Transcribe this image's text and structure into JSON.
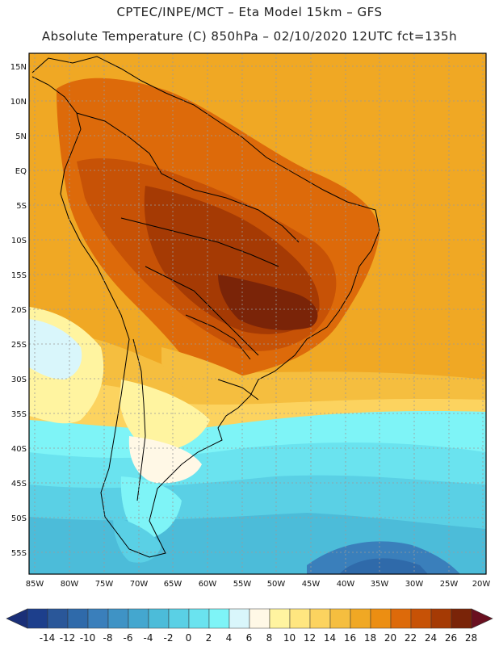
{
  "header": {
    "title_line1": "CPTEC/INPE/MCT –  Eta Model 15km – GFS",
    "title_line2": "Absolute Temperature (C) 850hPa – 02/10/2020 12UTC fct=135h"
  },
  "map": {
    "lat_labels": [
      "15N",
      "10N",
      "5N",
      "EQ",
      "5S",
      "10S",
      "15S",
      "20S",
      "25S",
      "30S",
      "35S",
      "40S",
      "45S",
      "50S",
      "55S"
    ],
    "lon_labels": [
      "85W",
      "80W",
      "75W",
      "70W",
      "65W",
      "60W",
      "55W",
      "50W",
      "45W",
      "40W",
      "35W",
      "30W",
      "25W",
      "20W"
    ]
  },
  "colorbar": {
    "labels": [
      "-14",
      "-12",
      "-10",
      "-8",
      "-6",
      "-4",
      "-2",
      "0",
      "2",
      "4",
      "6",
      "8",
      "10",
      "12",
      "14",
      "16",
      "18",
      "20",
      "22",
      "24",
      "26",
      "28"
    ],
    "colors": [
      "#1d3f8c",
      "#2a5799",
      "#2f6aaa",
      "#3a7fbb",
      "#3f93c5",
      "#44a7cf",
      "#4cbcd9",
      "#5ad0e5",
      "#6ae3ef",
      "#7ef4f7",
      "#d9f6fb",
      "#fff8e6",
      "#fff4a0",
      "#ffe680",
      "#fcd35f",
      "#f5be3f",
      "#f0a824",
      "#ec8e12",
      "#dd6a0a",
      "#c75206",
      "#a53a04",
      "#7a2408"
    ]
  }
}
